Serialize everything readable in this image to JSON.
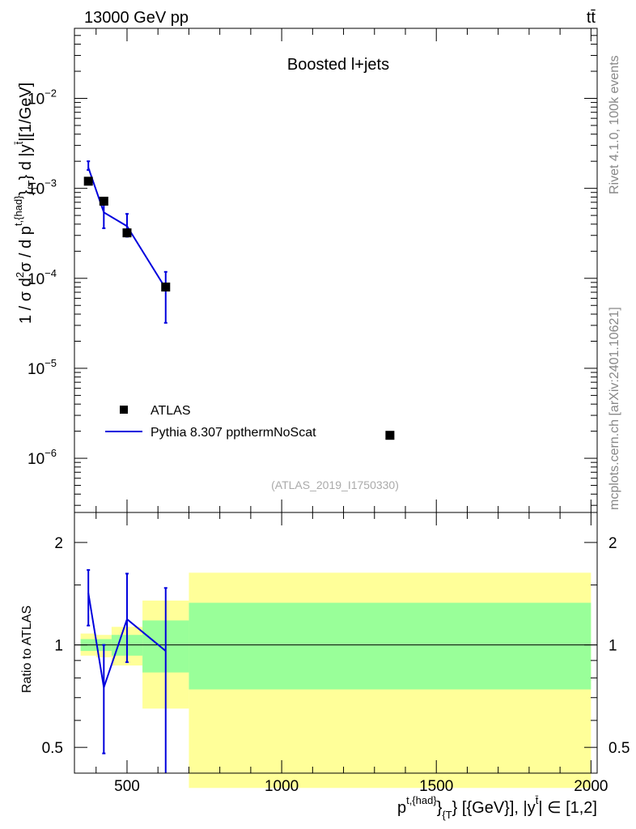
{
  "header": {
    "left": "13000 GeV pp",
    "right": "tt̄"
  },
  "side": {
    "rivet": "Rivet 4.1.0,  100k events",
    "mcplots": "mcplots.cern.ch [arXiv:2401.10621]"
  },
  "chart_data": [
    {
      "type": "scatter",
      "title": "Boosted l+jets",
      "analysis_tag": "(ATLAS_2019_I1750330)",
      "ylabel": "1 / σ d²σ / d p^{t,{had}}_{T} d |y^{t̄}|[1/GeV]",
      "ylabel_parts": {
        "a": "1 / σ d",
        "b": "2",
        "c": "σ / d p",
        "d": "t,{had}",
        "e": "}",
        "f": "{T",
        "g": "} d |y",
        "h": "t̄",
        "i": "|[1/GeV]"
      },
      "yscale": "log",
      "ylim": [
        2.5e-07,
        0.06
      ],
      "xlim": [
        330,
        2020
      ],
      "y_ticks": [
        {
          "value": 0.01,
          "base": "10",
          "exp": "−2"
        },
        {
          "value": 0.001,
          "base": "10",
          "exp": "−3"
        },
        {
          "value": 0.0001,
          "base": "10",
          "exp": "−4"
        },
        {
          "value": 1e-05,
          "base": "10",
          "exp": "−5"
        },
        {
          "value": 1e-06,
          "base": "10",
          "exp": "−6"
        }
      ],
      "legend": {
        "position": "left-bottom",
        "entries": [
          {
            "label": "ATLAS",
            "marker": "square",
            "color": "#000000"
          },
          {
            "label": "Pythia 8.307 ppthermNoScat",
            "marker": "line",
            "color": "#0000dd"
          }
        ]
      },
      "series": [
        {
          "name": "ATLAS",
          "color": "#000000",
          "x": [
            375,
            425,
            500,
            625,
            1350
          ],
          "y": [
            0.0012,
            0.00072,
            0.00032,
            8e-05,
            1.8e-06
          ]
        },
        {
          "name": "Pythia 8.307 ppthermNoScat",
          "color": "#0000dd",
          "x": [
            375,
            425,
            500,
            625
          ],
          "y": [
            0.0017,
            0.00054,
            0.00038,
            7.7e-05
          ],
          "err_low": [
            0.0016,
            0.00036,
            0.00029,
            3.2e-05
          ],
          "err_high": [
            0.002,
            0.00072,
            0.00052,
            0.000118
          ]
        }
      ]
    },
    {
      "type": "scatter",
      "ylabel": "Ratio to ATLAS",
      "xlabel": "p^{t,{had}}_{T} [{GeV}], |y^{t̄}| ∈ [1,2]",
      "xlabel_parts": {
        "a": "p",
        "b": "t,{had}",
        "c": "}",
        "d": "{T",
        "e": "} [{GeV}], |y",
        "f": "t̄",
        "g": "| ∈ [1,2]"
      },
      "yscale": "log",
      "ylim": [
        0.42,
        2.45
      ],
      "xlim": [
        330,
        2020
      ],
      "y_ticks": [
        {
          "value": 0.5,
          "label": "0.5"
        },
        {
          "value": 1,
          "label": "1"
        },
        {
          "value": 2,
          "label": "2"
        }
      ],
      "x_ticks": [
        {
          "value": 500,
          "label": "500"
        },
        {
          "value": 1000,
          "label": "1000"
        },
        {
          "value": 1500,
          "label": "1500"
        },
        {
          "value": 2000,
          "label": "2000"
        }
      ],
      "bands": [
        {
          "x0": 350,
          "x1": 400,
          "y_low": 0.93,
          "y_high": 1.08,
          "g_low": 0.96,
          "g_high": 1.04
        },
        {
          "x0": 400,
          "x1": 450,
          "y_low": 0.92,
          "y_high": 1.07,
          "g_low": 0.96,
          "g_high": 1.04
        },
        {
          "x0": 450,
          "x1": 550,
          "y_low": 0.87,
          "y_high": 1.13,
          "g_low": 0.93,
          "g_high": 1.07
        },
        {
          "x0": 550,
          "x1": 700,
          "y_low": 0.65,
          "y_high": 1.35,
          "g_low": 0.83,
          "g_high": 1.18
        },
        {
          "x0": 700,
          "x1": 2000,
          "y_low": 0.38,
          "y_high": 1.63,
          "g_low": 0.74,
          "g_high": 1.33
        }
      ],
      "series": [
        {
          "name": "Pythia 8.307 ppthermNoScat / ATLAS",
          "color": "#0000dd",
          "x": [
            375,
            425,
            500,
            625
          ],
          "y": [
            1.42,
            0.75,
            1.19,
            0.96
          ],
          "err_low": [
            1.14,
            0.48,
            0.89,
            0.4
          ],
          "err_high": [
            1.66,
            1.0,
            1.62,
            1.47
          ]
        }
      ]
    }
  ]
}
